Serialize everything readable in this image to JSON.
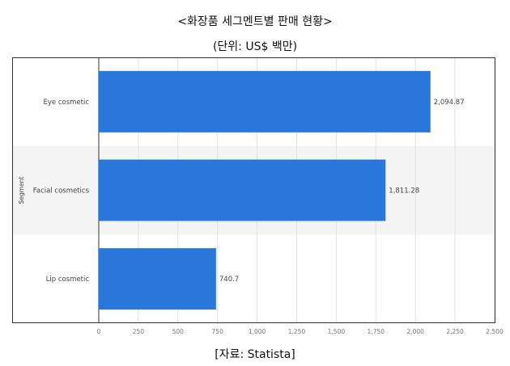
{
  "header": {
    "title": "<화장품 세그멘트별 판매 현황>",
    "unit": "(단위: US$ 백만)"
  },
  "footer": {
    "source": "[자료: Statista]"
  },
  "colors": {
    "bar": "#2a77dc",
    "band": "#f4f4f4",
    "axis": "#333333",
    "grid": "#e3e3e3"
  },
  "chart_data": {
    "type": "bar",
    "orientation": "horizontal",
    "categories": [
      "Eye cosmetic",
      "Facial cosmetics",
      "Lip cosmetic"
    ],
    "values": [
      2094.87,
      1811.28,
      740.7
    ],
    "value_labels": [
      "2,094.87",
      "1,811.28",
      "740.7"
    ],
    "ylabel": "Segment",
    "xlim": [
      0,
      2500
    ],
    "xticks": [
      0,
      250,
      500,
      750,
      1000,
      1250,
      1500,
      1750,
      2000,
      2250,
      2500
    ],
    "xtick_labels": [
      "0",
      "250",
      "500",
      "750",
      "1,000",
      "1,250",
      "1,500",
      "1,750",
      "2,000",
      "2,250",
      "2,500"
    ],
    "grid": true,
    "legend": "none"
  }
}
